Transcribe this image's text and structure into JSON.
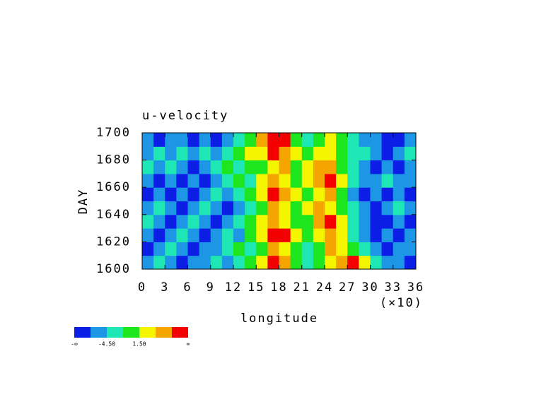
{
  "chart_data": {
    "type": "heatmap",
    "title": "u-velocity",
    "x_label": "longitude",
    "x_multiplier": "(×10)",
    "y_label": "DAY",
    "xlim": [
      0,
      360
    ],
    "ylim": [
      1600,
      1700
    ],
    "xticks": [
      {
        "value": 0,
        "label": "0"
      },
      {
        "value": 30,
        "label": "3"
      },
      {
        "value": 60,
        "label": "6"
      },
      {
        "value": 90,
        "label": "9"
      },
      {
        "value": 120,
        "label": "12"
      },
      {
        "value": 150,
        "label": "15"
      },
      {
        "value": 180,
        "label": "18"
      },
      {
        "value": 210,
        "label": "21"
      },
      {
        "value": 240,
        "label": "24"
      },
      {
        "value": 270,
        "label": "27"
      },
      {
        "value": 300,
        "label": "30"
      },
      {
        "value": 330,
        "label": "33"
      },
      {
        "value": 360,
        "label": "36"
      }
    ],
    "yticks": [
      1600,
      1620,
      1640,
      1660,
      1680,
      1700
    ],
    "xbins": [
      0,
      15,
      30,
      45,
      60,
      75,
      90,
      105,
      120,
      135,
      150,
      165,
      180,
      195,
      210,
      225,
      240,
      255,
      270,
      285,
      300,
      315,
      330,
      345,
      360
    ],
    "ybins": [
      1600,
      1610,
      1620,
      1630,
      1640,
      1650,
      1660,
      1670,
      1680,
      1690,
      1700
    ],
    "z": [
      [
        1,
        2,
        1,
        0,
        1,
        1,
        2,
        1,
        2,
        3,
        4,
        6,
        5,
        3,
        2,
        3,
        4,
        5,
        6,
        4,
        2,
        1,
        1,
        0
      ],
      [
        0,
        1,
        2,
        1,
        0,
        1,
        1,
        2,
        3,
        2,
        3,
        5,
        4,
        3,
        2,
        3,
        5,
        4,
        3,
        2,
        1,
        0,
        1,
        1
      ],
      [
        1,
        0,
        1,
        2,
        1,
        0,
        1,
        2,
        1,
        3,
        4,
        6,
        6,
        4,
        3,
        4,
        5,
        4,
        2,
        1,
        0,
        1,
        0,
        1
      ],
      [
        2,
        1,
        0,
        1,
        2,
        1,
        0,
        1,
        2,
        3,
        4,
        5,
        4,
        3,
        3,
        5,
        6,
        4,
        2,
        1,
        0,
        0,
        1,
        0
      ],
      [
        1,
        2,
        1,
        0,
        1,
        2,
        1,
        0,
        1,
        2,
        3,
        5,
        4,
        3,
        4,
        5,
        4,
        3,
        2,
        1,
        0,
        1,
        2,
        1
      ],
      [
        0,
        1,
        0,
        1,
        0,
        1,
        2,
        1,
        2,
        3,
        4,
        6,
        5,
        4,
        3,
        4,
        5,
        3,
        1,
        0,
        1,
        0,
        1,
        0
      ],
      [
        1,
        0,
        1,
        0,
        1,
        0,
        1,
        2,
        3,
        2,
        4,
        5,
        4,
        3,
        4,
        5,
        6,
        4,
        2,
        1,
        1,
        2,
        1,
        1
      ],
      [
        2,
        1,
        2,
        1,
        0,
        1,
        2,
        3,
        2,
        3,
        3,
        4,
        5,
        3,
        4,
        5,
        5,
        3,
        2,
        1,
        0,
        1,
        0,
        1
      ],
      [
        1,
        2,
        1,
        2,
        1,
        2,
        1,
        2,
        3,
        4,
        4,
        6,
        5,
        4,
        3,
        4,
        4,
        3,
        2,
        2,
        1,
        0,
        1,
        2
      ],
      [
        1,
        0,
        1,
        1,
        0,
        1,
        0,
        1,
        2,
        3,
        5,
        6,
        6,
        3,
        2,
        3,
        4,
        3,
        2,
        1,
        1,
        0,
        0,
        1
      ]
    ],
    "colorbar": {
      "colors": [
        "#0a1ee6",
        "#1e96e6",
        "#1ee6b4",
        "#1ee61e",
        "#f5f500",
        "#f5a500",
        "#f50000"
      ],
      "labels": [
        "-∞",
        "-4.50",
        "1.50",
        "∞"
      ]
    }
  }
}
